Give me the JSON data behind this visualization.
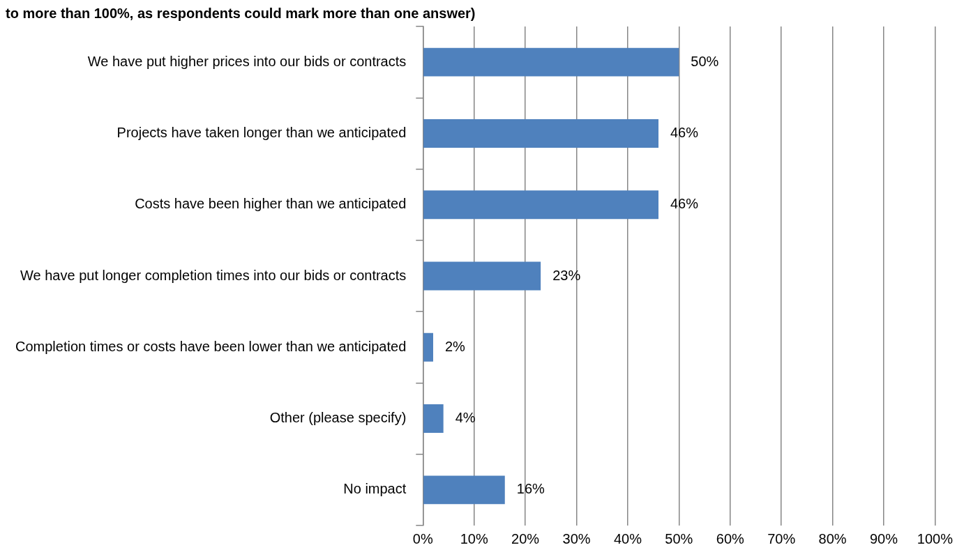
{
  "chart_data": {
    "type": "bar",
    "orientation": "horizontal",
    "title": "to more than 100%, as respondents could mark more than one answer)",
    "categories": [
      "We have put higher prices into our bids or contracts",
      "Projects have taken longer than we anticipated",
      "Costs have been higher than we anticipated",
      "We have put longer completion times into our bids or contracts",
      "Completion times or costs have been lower than we anticipated",
      "Other (please specify)",
      "No impact"
    ],
    "values": [
      50,
      46,
      46,
      23,
      2,
      4,
      16
    ],
    "value_labels": [
      "50%",
      "46%",
      "46%",
      "23%",
      "2%",
      "4%",
      "16%"
    ],
    "color": "#4f81bd",
    "xlim": [
      0,
      100
    ],
    "xticks": [
      {
        "value": 0,
        "label": "0%"
      },
      {
        "value": 10,
        "label": "10%"
      },
      {
        "value": 20,
        "label": "20%"
      },
      {
        "value": 30,
        "label": "30%"
      },
      {
        "value": 40,
        "label": "40%"
      },
      {
        "value": 50,
        "label": "50%"
      },
      {
        "value": 60,
        "label": "60%"
      },
      {
        "value": 70,
        "label": "70%"
      },
      {
        "value": 80,
        "label": "80%"
      },
      {
        "value": 90,
        "label": "90%"
      },
      {
        "value": 100,
        "label": "100%"
      }
    ],
    "grid": "x",
    "legend": false
  }
}
